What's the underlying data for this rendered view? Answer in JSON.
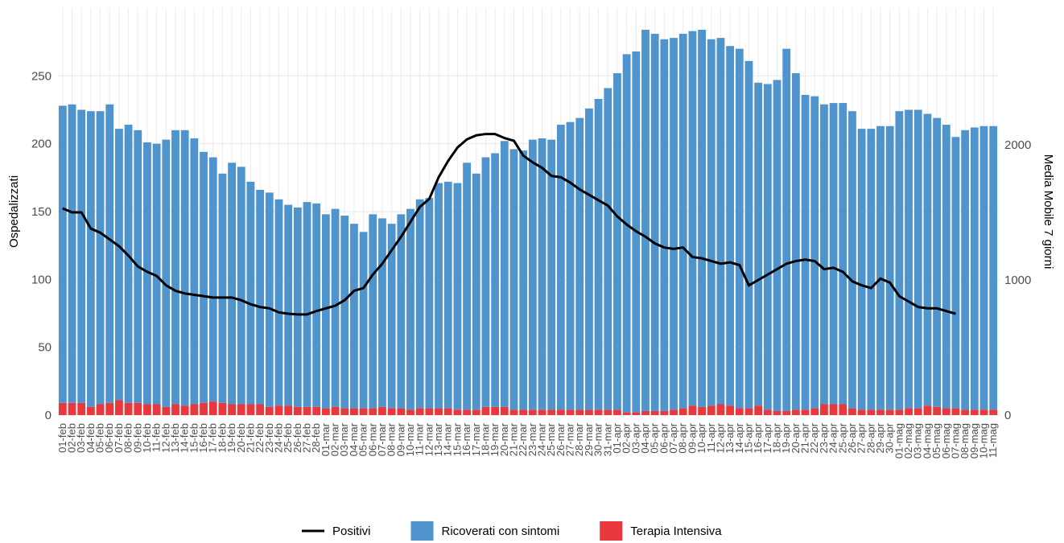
{
  "chart_data": {
    "type": "bar_line",
    "y_label": "Ospedalizzati",
    "y2_label": "Media Mobile 7 giorni",
    "categories": [
      "01-feb",
      "02-feb",
      "03-feb",
      "04-feb",
      "05-feb",
      "06-feb",
      "07-feb",
      "08-feb",
      "09-feb",
      "10-feb",
      "11-feb",
      "12-feb",
      "13-feb",
      "14-feb",
      "15-feb",
      "16-feb",
      "17-feb",
      "18-feb",
      "19-feb",
      "20-feb",
      "21-feb",
      "22-feb",
      "23-feb",
      "24-feb",
      "25-feb",
      "26-feb",
      "27-feb",
      "28-feb",
      "01-mar",
      "02-mar",
      "03-mar",
      "04-mar",
      "05-mar",
      "06-mar",
      "07-mar",
      "08-mar",
      "09-mar",
      "10-mar",
      "11-mar",
      "12-mar",
      "13-mar",
      "14-mar",
      "15-mar",
      "16-mar",
      "17-mar",
      "18-mar",
      "19-mar",
      "20-mar",
      "21-mar",
      "22-mar",
      "23-mar",
      "24-mar",
      "25-mar",
      "26-mar",
      "27-mar",
      "28-mar",
      "29-mar",
      "30-mar",
      "31-mar",
      "01-apr",
      "02-apr",
      "03-apr",
      "04-apr",
      "05-apr",
      "06-apr",
      "07-apr",
      "08-apr",
      "09-apr",
      "10-apr",
      "11-apr",
      "12-apr",
      "13-apr",
      "14-apr",
      "15-apr",
      "16-apr",
      "17-apr",
      "18-apr",
      "19-apr",
      "20-apr",
      "21-apr",
      "22-apr",
      "23-apr",
      "24-apr",
      "25-apr",
      "26-apr",
      "27-apr",
      "28-apr",
      "29-apr",
      "30-apr",
      "01-mag",
      "02-mag",
      "03-mag",
      "04-mag",
      "05-mag",
      "06-mag",
      "07-mag",
      "08-mag",
      "09-mag",
      "10-mag",
      "11-mag"
    ],
    "series": [
      {
        "name": "Terapia Intensiva",
        "color": "#e8383d",
        "values": [
          9,
          9,
          9,
          6,
          8,
          9,
          11,
          9,
          9,
          8,
          8,
          6,
          8,
          7,
          8,
          9,
          10,
          9,
          8,
          8,
          8,
          8,
          6,
          7,
          7,
          6,
          6,
          6,
          5,
          6,
          5,
          5,
          5,
          5,
          6,
          5,
          5,
          4,
          5,
          5,
          5,
          5,
          4,
          4,
          4,
          6,
          6,
          6,
          4,
          4,
          4,
          4,
          4,
          4,
          4,
          4,
          4,
          4,
          4,
          4,
          2,
          2,
          3,
          3,
          3,
          4,
          5,
          7,
          6,
          7,
          8,
          7,
          5,
          5,
          7,
          4,
          3,
          3,
          4,
          4,
          5,
          8,
          8,
          8,
          5,
          4,
          4,
          4,
          4,
          4,
          5,
          5,
          7,
          6,
          5,
          5,
          4,
          4,
          4,
          4
        ]
      },
      {
        "name": "Ricoverati con sintomi",
        "color": "#4f94cd",
        "values": [
          219,
          220,
          216,
          218,
          216,
          220,
          200,
          205,
          201,
          193,
          192,
          197,
          202,
          203,
          196,
          185,
          180,
          169,
          178,
          175,
          164,
          158,
          158,
          152,
          148,
          147,
          151,
          150,
          143,
          146,
          142,
          136,
          130,
          143,
          139,
          136,
          143,
          148,
          154,
          155,
          166,
          167,
          167,
          182,
          174,
          184,
          187,
          196,
          192,
          191,
          199,
          200,
          199,
          210,
          212,
          215,
          222,
          229,
          237,
          248,
          264,
          266,
          281,
          278,
          274,
          274,
          276,
          276,
          278,
          270,
          270,
          265,
          265,
          256,
          238,
          240,
          244,
          267,
          248,
          232,
          230,
          221,
          222,
          222,
          219,
          207,
          207,
          209,
          209,
          220,
          220,
          220,
          215,
          213,
          209,
          200,
          206,
          208,
          209,
          209
        ]
      },
      {
        "name": "Positivi",
        "type": "line",
        "axis": "y2",
        "color": "#000000",
        "values": [
          1530,
          1500,
          1500,
          1380,
          1350,
          1300,
          1250,
          1180,
          1100,
          1060,
          1030,
          960,
          920,
          900,
          890,
          880,
          870,
          870,
          870,
          850,
          820,
          800,
          790,
          760,
          750,
          745,
          745,
          770,
          790,
          810,
          850,
          920,
          940,
          1040,
          1120,
          1220,
          1320,
          1430,
          1540,
          1600,
          1760,
          1880,
          1980,
          2040,
          2070,
          2080,
          2080,
          2050,
          2030,
          1920,
          1870,
          1830,
          1770,
          1760,
          1720,
          1670,
          1630,
          1590,
          1550,
          1470,
          1410,
          1360,
          1320,
          1270,
          1240,
          1230,
          1240,
          1170,
          1160,
          1140,
          1120,
          1130,
          1110,
          960,
          1000,
          1040,
          1080,
          1120,
          1140,
          1150,
          1140,
          1080,
          1090,
          1060,
          990,
          960,
          940,
          1010,
          980,
          880,
          840,
          800,
          790,
          790,
          770,
          750,
          null,
          null,
          null,
          null
        ]
      }
    ],
    "ylim": [
      0,
      300
    ],
    "yticks": [
      0,
      50,
      100,
      150,
      200,
      250
    ],
    "y2lim": [
      0,
      3012
    ],
    "y2ticks": [
      0,
      1000,
      2000
    ],
    "grid": true,
    "legend_position": "bottom"
  }
}
